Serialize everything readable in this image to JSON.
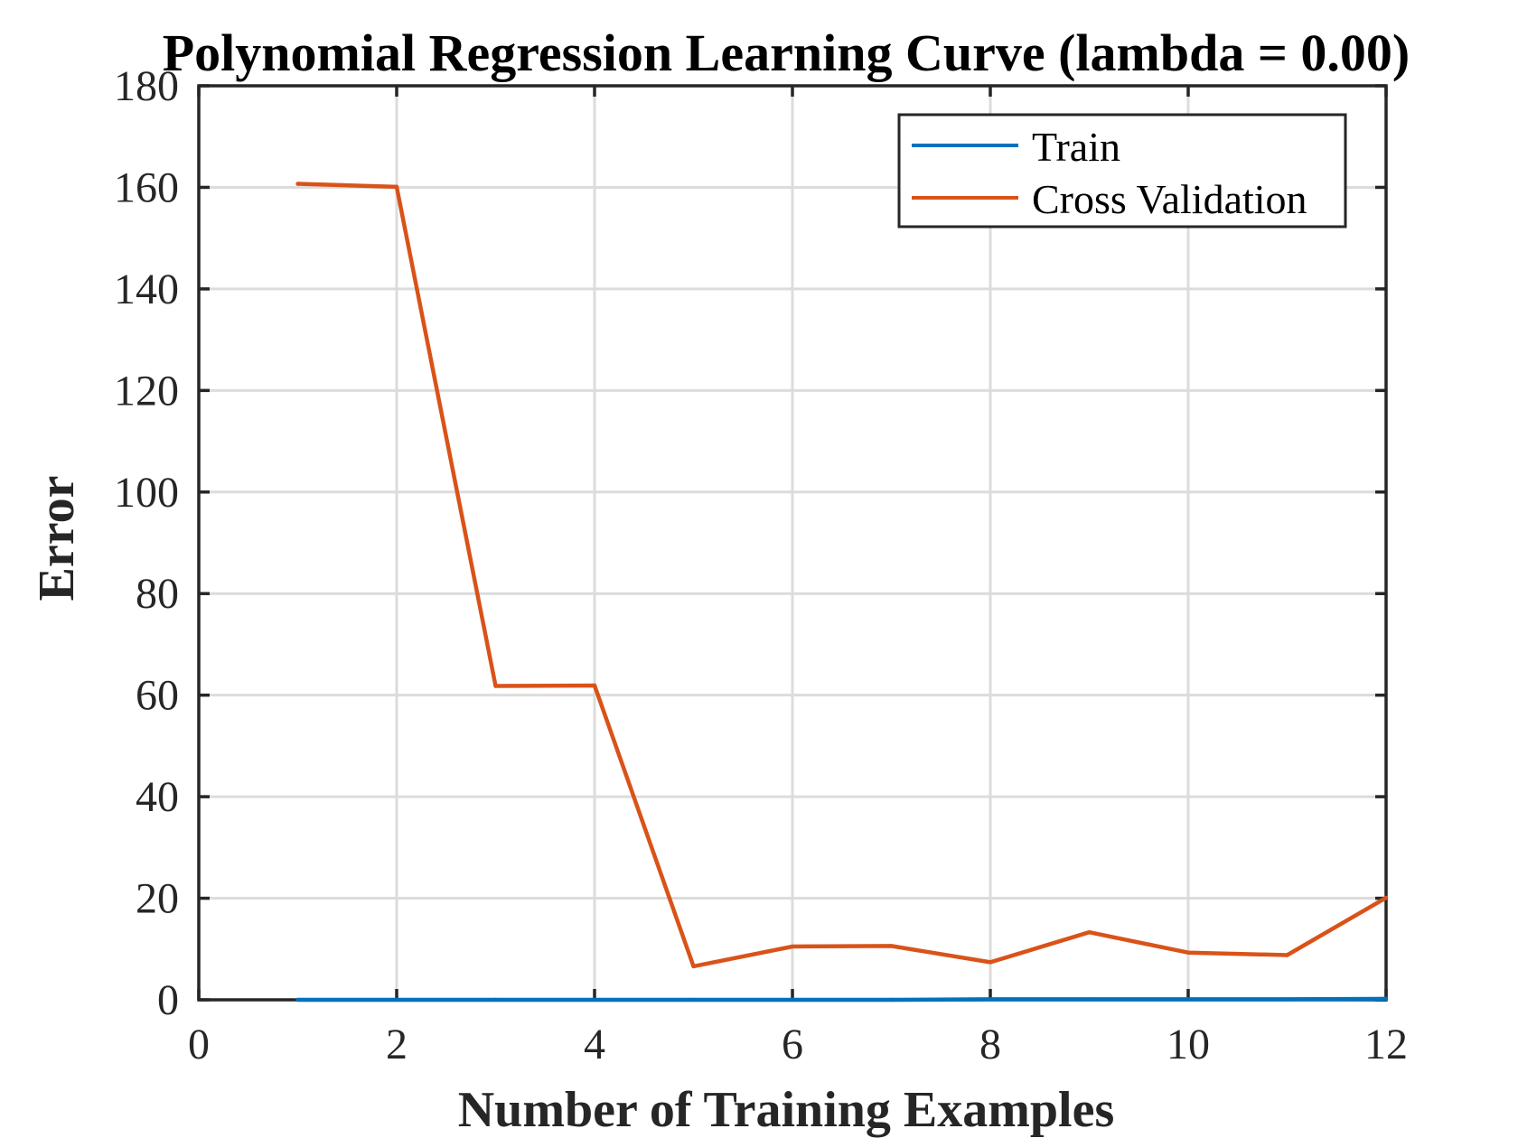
{
  "chart_data": {
    "type": "line",
    "title": "Polynomial Regression Learning Curve (lambda = 0.00)",
    "xlabel": "Number of Training Examples",
    "ylabel": "Error",
    "xlim": [
      0,
      12
    ],
    "ylim": [
      0,
      180
    ],
    "xticks": [
      0,
      2,
      4,
      6,
      8,
      10,
      12
    ],
    "yticks": [
      0,
      20,
      40,
      60,
      80,
      100,
      120,
      140,
      160,
      180
    ],
    "grid": true,
    "legend_position": "top-right",
    "series": [
      {
        "name": "Train",
        "color": "#0072BD",
        "x": [
          1,
          2,
          3,
          4,
          5,
          6,
          7,
          8,
          9,
          10,
          11,
          12
        ],
        "y": [
          0.0,
          0.0,
          0.0,
          0.0,
          0.0,
          0.0,
          0.0,
          0.1,
          0.1,
          0.1,
          0.1,
          0.2
        ]
      },
      {
        "name": "Cross Validation",
        "color": "#D95319",
        "x": [
          1,
          2,
          3,
          4,
          5,
          6,
          7,
          8,
          9,
          10,
          11,
          12
        ],
        "y": [
          160.7,
          160.1,
          61.8,
          61.9,
          6.6,
          10.5,
          10.6,
          7.4,
          13.3,
          9.3,
          8.8,
          20.1
        ]
      }
    ]
  }
}
